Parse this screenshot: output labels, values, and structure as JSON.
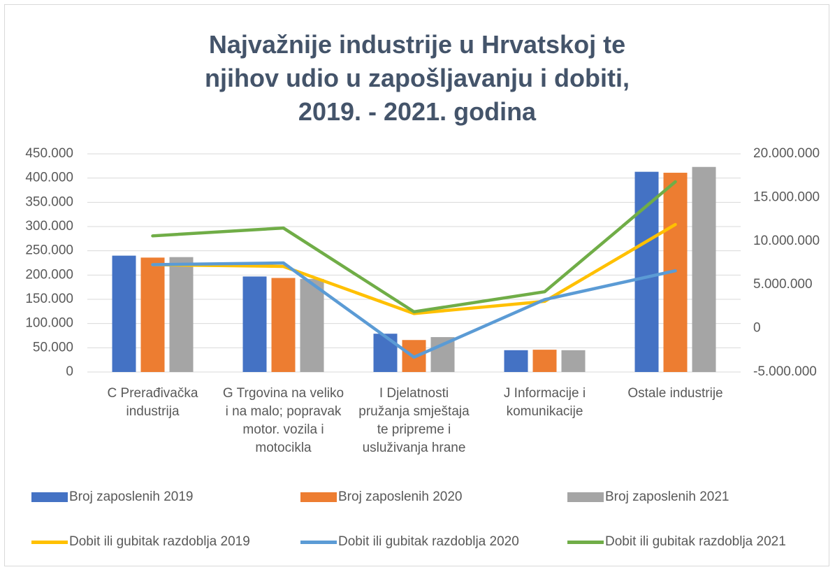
{
  "chart_data": {
    "type": "bar",
    "title": "Najvažnije industrije u Hrvatskoj te njihov udio u zapošljavanju i dobiti, 2019. - 2021. godina",
    "categories": [
      "C Prerađivačka industrija",
      "G Trgovina na veliko i na malo; popravak motor. vozila i motocikla",
      "I Djelatnosti pružanja smještaja te pripreme i usluživanja hrane",
      "J Informacije i komunikacije",
      "Ostale industrije"
    ],
    "series": [
      {
        "name": "Broj zaposlenih 2019",
        "type": "bar",
        "color": "#4472c4",
        "values": [
          240000,
          197000,
          79000,
          45000,
          413000
        ]
      },
      {
        "name": "Broj zaposlenih 2020",
        "type": "bar",
        "color": "#ed7d31",
        "values": [
          236000,
          194000,
          66000,
          46000,
          411000
        ]
      },
      {
        "name": "Broj zaposlenih 2021",
        "type": "bar",
        "color": "#a5a5a5",
        "values": [
          237000,
          192000,
          72000,
          45000,
          423000
        ]
      },
      {
        "name": "Dobit ili gubitak razdoblja 2019",
        "type": "line",
        "axis": "y2",
        "color": "#ffc000",
        "values": [
          7300000,
          7100000,
          1700000,
          3100000,
          11900000
        ]
      },
      {
        "name": "Dobit ili gubitak razdoblja 2020",
        "type": "line",
        "axis": "y2",
        "color": "#5b9bd5",
        "values": [
          7300000,
          7500000,
          -3300000,
          3300000,
          6600000
        ]
      },
      {
        "name": "Dobit ili gubitak razdoblja 2021",
        "type": "line",
        "axis": "y2",
        "color": "#70ad47",
        "values": [
          10600000,
          11500000,
          1900000,
          4200000,
          16800000
        ]
      }
    ],
    "ylim": [
      0,
      450000
    ],
    "yticks": [
      0,
      {
        "value": 50000,
        "label": "50.000"
      },
      {
        "value": 100000,
        "label": "100.000"
      },
      {
        "value": 150000,
        "label": "150.000"
      },
      {
        "value": 200000,
        "label": "200.000"
      },
      {
        "value": 250000,
        "label": "250.000"
      },
      {
        "value": 300000,
        "label": "300.000"
      },
      {
        "value": 350000,
        "label": "350.000"
      },
      {
        "value": 400000,
        "label": "400.000"
      },
      {
        "value": 450000,
        "label": "450.000"
      }
    ],
    "y2lim": [
      -5000000,
      20000000
    ],
    "y2ticks": [
      {
        "value": -5000000,
        "label": "-5.000.000"
      },
      0,
      {
        "value": 5000000,
        "label": "5.000.000"
      },
      {
        "value": 10000000,
        "label": "10.000.000"
      },
      {
        "value": 15000000,
        "label": "15.000.000"
      },
      {
        "value": 20000000,
        "label": "20.000.000"
      }
    ],
    "grid": true,
    "legend": "bottom"
  }
}
